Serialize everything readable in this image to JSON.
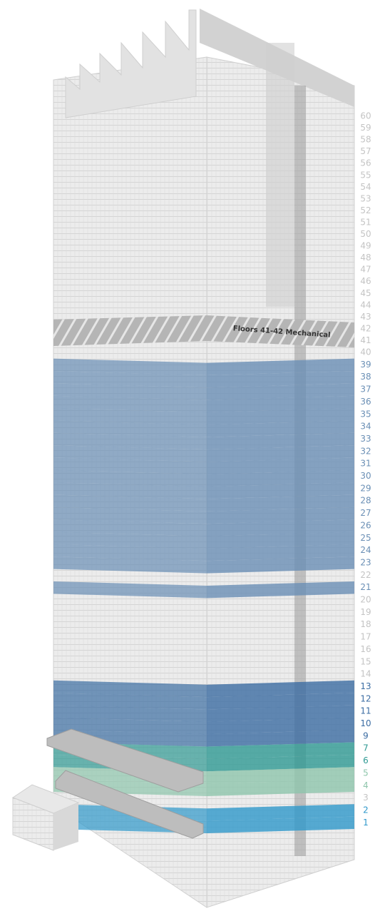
{
  "mechanical_label": "Floors 41-42 Mechanical",
  "floors": [
    {
      "label": "60",
      "color": "#c4c4c4"
    },
    {
      "label": "59",
      "color": "#c4c4c4"
    },
    {
      "label": "58",
      "color": "#c4c4c4"
    },
    {
      "label": "57",
      "color": "#c4c4c4"
    },
    {
      "label": "56",
      "color": "#c4c4c4"
    },
    {
      "label": "55",
      "color": "#c4c4c4"
    },
    {
      "label": "54",
      "color": "#c4c4c4"
    },
    {
      "label": "53",
      "color": "#c4c4c4"
    },
    {
      "label": "52",
      "color": "#c4c4c4"
    },
    {
      "label": "51",
      "color": "#c4c4c4"
    },
    {
      "label": "50",
      "color": "#c4c4c4"
    },
    {
      "label": "49",
      "color": "#c4c4c4"
    },
    {
      "label": "48",
      "color": "#c4c4c4"
    },
    {
      "label": "47",
      "color": "#c4c4c4"
    },
    {
      "label": "46",
      "color": "#c4c4c4"
    },
    {
      "label": "45",
      "color": "#c4c4c4"
    },
    {
      "label": "44",
      "color": "#c4c4c4"
    },
    {
      "label": "43",
      "color": "#c4c4c4"
    },
    {
      "label": "42",
      "color": "#c4c4c4"
    },
    {
      "label": "41",
      "color": "#c4c4c4"
    },
    {
      "label": "40",
      "color": "#c4c4c4"
    },
    {
      "label": "39",
      "color": "#6a8fb5"
    },
    {
      "label": "38",
      "color": "#6a8fb5"
    },
    {
      "label": "37",
      "color": "#6a8fb5"
    },
    {
      "label": "36",
      "color": "#6a8fb5"
    },
    {
      "label": "35",
      "color": "#6a8fb5"
    },
    {
      "label": "34",
      "color": "#6a8fb5"
    },
    {
      "label": "33",
      "color": "#6a8fb5"
    },
    {
      "label": "32",
      "color": "#6a8fb5"
    },
    {
      "label": "31",
      "color": "#6a8fb5"
    },
    {
      "label": "30",
      "color": "#6a8fb5"
    },
    {
      "label": "29",
      "color": "#6a8fb5"
    },
    {
      "label": "28",
      "color": "#6a8fb5"
    },
    {
      "label": "27",
      "color": "#6a8fb5"
    },
    {
      "label": "26",
      "color": "#6a8fb5"
    },
    {
      "label": "25",
      "color": "#6a8fb5"
    },
    {
      "label": "24",
      "color": "#6a8fb5"
    },
    {
      "label": "23",
      "color": "#6a8fb5"
    },
    {
      "label": "22",
      "color": "#c4c4c4"
    },
    {
      "label": "21",
      "color": "#6a8fb5"
    },
    {
      "label": "20",
      "color": "#c4c4c4"
    },
    {
      "label": "19",
      "color": "#c4c4c4"
    },
    {
      "label": "18",
      "color": "#c4c4c4"
    },
    {
      "label": "17",
      "color": "#c4c4c4"
    },
    {
      "label": "16",
      "color": "#c4c4c4"
    },
    {
      "label": "15",
      "color": "#c4c4c4"
    },
    {
      "label": "14",
      "color": "#c4c4c4"
    },
    {
      "label": "13",
      "color": "#3c6da3"
    },
    {
      "label": "12",
      "color": "#3c6da3"
    },
    {
      "label": "11",
      "color": "#3c6da3"
    },
    {
      "label": "10",
      "color": "#3c6da3"
    },
    {
      "label": "9",
      "color": "#3c6da3"
    },
    {
      "label": "7",
      "color": "#2f9a93"
    },
    {
      "label": "6",
      "color": "#2f9a93"
    },
    {
      "label": "5",
      "color": "#8fc6ac"
    },
    {
      "label": "4",
      "color": "#8fc6ac"
    },
    {
      "label": "3",
      "color": "#c4c4c4"
    },
    {
      "label": "2",
      "color": "#2f98cb"
    },
    {
      "label": "1",
      "color": "#2f98cb"
    }
  ]
}
